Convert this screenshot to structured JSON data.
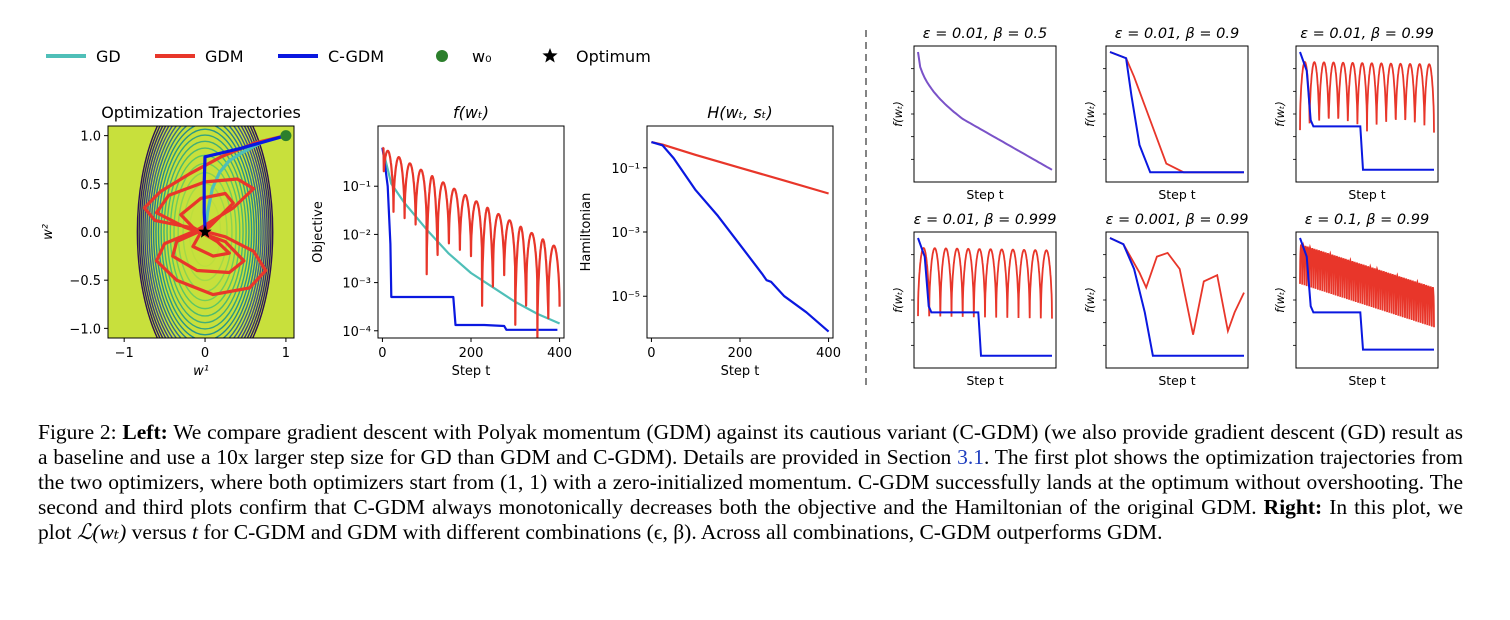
{
  "colors": {
    "gd": "#4fbfb8",
    "gdm": "#e8362a",
    "cgdm": "#0a18e0",
    "w0": "#2c7f2c",
    "optimum": "#000000",
    "overlap": "#7a52c8",
    "link": "#1f3fbf"
  },
  "legend": [
    {
      "key": "gd",
      "label": "GD",
      "kind": "line"
    },
    {
      "key": "gdm",
      "label": "GDM",
      "kind": "line"
    },
    {
      "key": "cgdm",
      "label": "C-GDM",
      "kind": "line"
    },
    {
      "key": "w0",
      "label": "w₀",
      "kind": "dot"
    },
    {
      "key": "optimum",
      "label": "Optimum",
      "kind": "star"
    }
  ],
  "chart_data": [
    {
      "id": "traj",
      "type": "contour-trajectory",
      "title": "Optimization Trajectories",
      "xlabel": "w¹",
      "ylabel": "w²",
      "xlim": [
        -1.2,
        1.1
      ],
      "ylim": [
        -1.1,
        1.1
      ],
      "xticks": [
        -1,
        0,
        1
      ],
      "yticks": [
        1.0,
        0.5,
        0.0,
        -0.5,
        -1.0
      ],
      "xtick_labels": [
        "−1",
        "0",
        "1"
      ],
      "ytick_labels": [
        "1.0",
        "0.5",
        "0.0",
        "−0.5",
        "−1.0"
      ],
      "contour_levels": 19,
      "start": [
        1.0,
        1.0
      ],
      "optimum": [
        0.0,
        0.0
      ],
      "series": [
        {
          "key": "gd",
          "name": "GD",
          "points": [
            [
              1.0,
              1.0
            ],
            [
              0.7,
              0.93
            ],
            [
              0.45,
              0.82
            ],
            [
              0.3,
              0.74
            ],
            [
              0.18,
              0.62
            ],
            [
              0.09,
              0.45
            ],
            [
              0.03,
              0.2
            ],
            [
              0.01,
              0.05
            ],
            [
              0.0,
              0.0
            ]
          ]
        },
        {
          "key": "gdm",
          "name": "GDM",
          "points": [
            [
              1.0,
              1.0
            ],
            [
              0.6,
              0.92
            ],
            [
              0.2,
              0.78
            ],
            [
              -0.2,
              0.6
            ],
            [
              -0.55,
              0.42
            ],
            [
              -0.75,
              0.25
            ],
            [
              -0.62,
              0.12
            ],
            [
              -0.2,
              0.05
            ],
            [
              0.25,
              -0.05
            ],
            [
              0.6,
              -0.2
            ],
            [
              0.75,
              -0.4
            ],
            [
              0.55,
              -0.58
            ],
            [
              0.1,
              -0.65
            ],
            [
              -0.35,
              -0.5
            ],
            [
              -0.6,
              -0.3
            ],
            [
              -0.5,
              -0.12
            ],
            [
              -0.1,
              0.02
            ],
            [
              0.35,
              0.25
            ],
            [
              0.6,
              0.45
            ],
            [
              0.4,
              0.55
            ],
            [
              0.0,
              0.52
            ],
            [
              -0.45,
              0.38
            ],
            [
              -0.6,
              0.2
            ],
            [
              -0.25,
              0.05
            ],
            [
              0.25,
              -0.1
            ],
            [
              0.48,
              -0.3
            ],
            [
              0.3,
              -0.42
            ],
            [
              -0.1,
              -0.4
            ],
            [
              -0.4,
              -0.25
            ],
            [
              -0.35,
              -0.1
            ],
            [
              0.05,
              0.05
            ],
            [
              0.35,
              0.3
            ],
            [
              0.25,
              0.4
            ],
            [
              -0.05,
              0.35
            ],
            [
              -0.3,
              0.18
            ],
            [
              -0.15,
              0.05
            ],
            [
              0.15,
              -0.1
            ],
            [
              0.3,
              -0.22
            ],
            [
              0.1,
              -0.25
            ],
            [
              -0.15,
              -0.15
            ],
            [
              -0.05,
              0.0
            ],
            [
              0.1,
              0.1
            ],
            [
              0.0,
              0.05
            ],
            [
              0.0,
              0.0
            ]
          ]
        },
        {
          "key": "cgdm",
          "name": "C-GDM",
          "points": [
            [
              1.0,
              1.0
            ],
            [
              0.7,
              0.93
            ],
            [
              0.45,
              0.87
            ],
            [
              0.2,
              0.82
            ],
            [
              0.0,
              0.78
            ],
            [
              -0.01,
              0.5
            ],
            [
              -0.01,
              0.2
            ],
            [
              0.0,
              0.05
            ],
            [
              0.0,
              0.0
            ]
          ]
        }
      ]
    },
    {
      "id": "obj",
      "type": "line",
      "title": "f(wₜ)",
      "xlabel": "Step t",
      "ylabel": "Objective",
      "yscale": "log",
      "xlim": [
        -10,
        410
      ],
      "ylim_log10": [
        -4.15,
        0.25
      ],
      "xticks": [
        0,
        200,
        400
      ],
      "yticks_log10": [
        -1,
        -2,
        -3,
        -4
      ],
      "ytick_labels": [
        "10⁻¹",
        "10⁻²",
        "10⁻³",
        "10⁻⁴"
      ],
      "series": [
        {
          "key": "gd",
          "name": "GD",
          "x": [
            0,
            20,
            50,
            100,
            150,
            200,
            250,
            300,
            350,
            400
          ],
          "log10y": [
            -0.2,
            -0.95,
            -1.35,
            -1.9,
            -2.4,
            -2.8,
            -3.1,
            -3.4,
            -3.65,
            -3.85
          ]
        },
        {
          "key": "cgdm",
          "name": "C-GDM",
          "x": [
            0,
            5,
            12,
            18,
            20,
            60,
            100,
            160,
            165,
            190,
            230,
            275,
            280,
            330,
            395
          ],
          "log10y": [
            -0.2,
            -0.5,
            -1.0,
            -2.2,
            -3.3,
            -3.3,
            -3.3,
            -3.3,
            -3.88,
            -3.88,
            -3.88,
            -3.9,
            -3.98,
            -3.98,
            -3.98
          ]
        },
        {
          "key": "gdm",
          "name": "GDM",
          "x": [
            0,
            400
          ],
          "log10y": [
            -0.2,
            -2.3
          ],
          "oscillating": true,
          "arches": 16
        }
      ]
    },
    {
      "id": "ham",
      "type": "line",
      "title": "H(wₜ, sₜ)",
      "xlabel": "Step t",
      "ylabel": "Hamiltonian",
      "yscale": "log",
      "xlim": [
        -10,
        410
      ],
      "ylim_log10": [
        -6.3,
        0.3
      ],
      "xticks": [
        0,
        200,
        400
      ],
      "yticks_log10": [
        -1,
        -3,
        -5
      ],
      "ytick_labels": [
        "10⁻¹",
        "10⁻³",
        "10⁻⁵"
      ],
      "series": [
        {
          "key": "gdm",
          "name": "GDM",
          "x": [
            0,
            25,
            100,
            200,
            300,
            400
          ],
          "log10y": [
            -0.2,
            -0.28,
            -0.6,
            -1.0,
            -1.4,
            -1.8
          ]
        },
        {
          "key": "cgdm",
          "name": "C-GDM",
          "x": [
            0,
            25,
            50,
            100,
            150,
            200,
            250,
            260,
            270,
            300,
            350,
            400
          ],
          "log10y": [
            -0.2,
            -0.3,
            -0.7,
            -1.7,
            -2.5,
            -3.4,
            -4.3,
            -4.5,
            -4.55,
            -5.0,
            -5.5,
            -6.1
          ]
        }
      ]
    }
  ],
  "right_panels": [
    {
      "title": "ε = 0.01, β = 0.5",
      "ylabel": "f(wₜ)",
      "xlabel": "Step t",
      "mode": "overlap"
    },
    {
      "title": "ε = 0.01, β = 0.9",
      "ylabel": "f(wₜ)",
      "xlabel": "Step t",
      "mode": "smooth"
    },
    {
      "title": "ε = 0.01, β = 0.99",
      "ylabel": "f(wₜ)",
      "xlabel": "Step t",
      "mode": "arches",
      "arches": 14
    },
    {
      "title": "ε = 0.01, β = 0.999",
      "ylabel": "f(wₜ)",
      "xlabel": "Step t",
      "mode": "arches",
      "arches": 12
    },
    {
      "title": "ε = 0.001, β = 0.99",
      "ylabel": "f(wₜ)",
      "xlabel": "Step t",
      "mode": "wide"
    },
    {
      "title": "ε = 0.1, β = 0.99",
      "ylabel": "f(wₜ)",
      "xlabel": "Step t",
      "mode": "dense",
      "arches": 60
    }
  ],
  "caption": {
    "figure_label": "Figure 2:",
    "left_label": "Left:",
    "text_1": "We compare gradient descent with Polyak momentum (GDM) against its cautious variant (C-GDM) (we also provide gradient descent (GD) result as a baseline and use a 10x larger step size for GD than GDM and C-GDM). Details are provided in Section",
    "section_ref": "3.1",
    "text_2": ". The first plot shows the optimization trajectories from the two optimizers, where both optimizers start from",
    "point": "(1, 1)",
    "text_3": "with a zero-initialized momentum. C-GDM successfully lands at the optimum without overshooting. The second and third plots confirm that C-GDM always monotonically decreases both the objective and the Hamiltonian of the original GDM.",
    "right_label": "Right:",
    "text_4": "In this plot, we plot",
    "math_loss": "ℒ(wₜ)",
    "text_5": "versus",
    "math_t": "t",
    "text_6": "for C-GDM and GDM with different combinations",
    "math_combo": "(ϵ, β)",
    "text_7": ". Across all combinations, C-GDM outperforms GDM."
  }
}
